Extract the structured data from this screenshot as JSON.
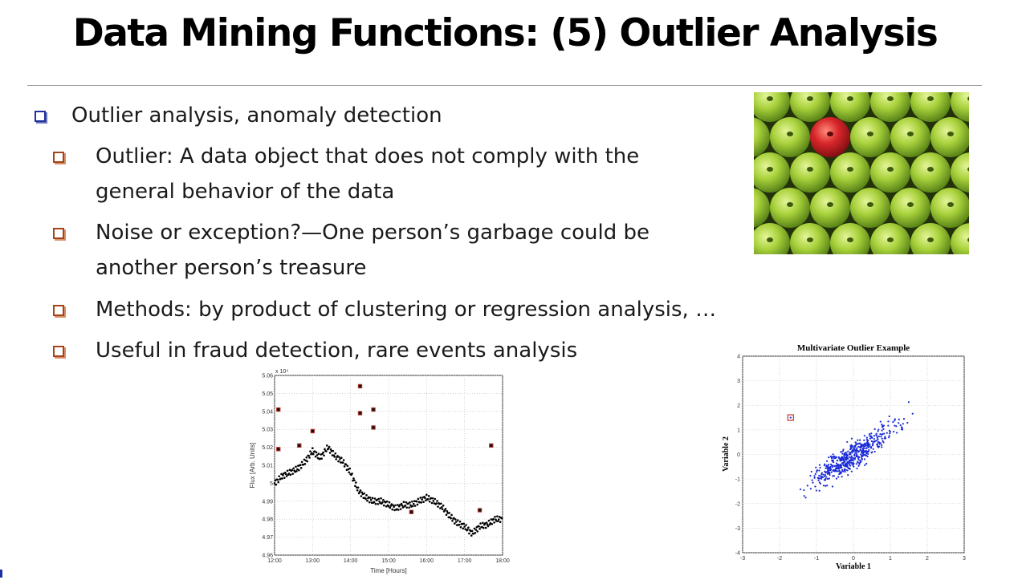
{
  "slide": {
    "title": "Data Mining Functions: (5) Outlier Analysis",
    "bullets": [
      {
        "level": 1,
        "lines": [
          "Outlier analysis, anomaly detection"
        ]
      },
      {
        "level": 2,
        "lines": [
          "Outlier: A data object that does not comply with the",
          "general behavior of the data"
        ]
      },
      {
        "level": 2,
        "lines": [
          "Noise or exception?—One person’s garbage could be",
          "another person’s treasure"
        ]
      },
      {
        "level": 2,
        "lines": [
          "Methods: by product of clustering or regression analysis, …"
        ]
      },
      {
        "level": 2,
        "lines": [
          "Useful in fraud detection, rare events analysis"
        ]
      }
    ]
  },
  "colors": {
    "level1_marker": "#1f2ea0",
    "level2_marker": "#a4441a",
    "outlier": "#c0392b",
    "scatter_points": "#1a2bd6"
  },
  "image": {
    "icon": "apples-photo-icon",
    "description": "grid of green apples with one red apple"
  },
  "chart_data": [
    {
      "type": "scatter",
      "title": "",
      "xlabel": "Time [Hours]",
      "ylabel": "Flux [Arb. Units]",
      "y_multiplier_label": "x 10⁴",
      "xticks": [
        "12:00",
        "13:00",
        "14:00",
        "15:00",
        "16:00",
        "17:00",
        "18:00"
      ],
      "yticks": [
        "4.96",
        "4.97",
        "4.98",
        "4.99",
        "5",
        "5.01",
        "5.02",
        "5.03",
        "5.04",
        "5.05",
        "5.06"
      ],
      "xlim": [
        12,
        18
      ],
      "ylim": [
        4.96,
        5.06
      ],
      "grid": true,
      "series": [
        {
          "role": "data",
          "x": [
            12.0,
            12.2,
            12.4,
            12.6,
            12.8,
            13.0,
            13.2,
            13.4,
            13.6,
            13.8,
            14.0,
            14.2,
            14.4,
            14.6,
            14.8,
            15.0,
            15.2,
            15.4,
            15.6,
            15.8,
            16.0,
            16.2,
            16.4,
            16.6,
            16.8,
            17.0,
            17.2,
            17.4,
            17.6,
            17.8,
            18.0
          ],
          "y": [
            5.0,
            5.004,
            5.006,
            5.008,
            5.012,
            5.018,
            5.014,
            5.02,
            5.015,
            5.012,
            5.006,
            4.996,
            4.992,
            4.99,
            4.99,
            4.988,
            4.986,
            4.988,
            4.988,
            4.99,
            4.992,
            4.99,
            4.987,
            4.982,
            4.978,
            4.976,
            4.972,
            4.976,
            4.977,
            4.98,
            4.98
          ]
        },
        {
          "role": "outliers",
          "x": [
            12.1,
            12.1,
            12.65,
            13.0,
            14.25,
            14.25,
            14.6,
            14.6,
            15.6,
            17.4,
            17.7
          ],
          "y": [
            5.041,
            5.019,
            5.021,
            5.029,
            5.054,
            5.039,
            5.041,
            5.031,
            4.984,
            4.985,
            5.021
          ]
        }
      ]
    },
    {
      "type": "scatter",
      "title": "Multivariate Outlier Example",
      "xlabel": "Variable 1",
      "ylabel": "Variable 2",
      "xticks": [
        "-3",
        "-2",
        "-1",
        "0",
        "1",
        "2",
        "3"
      ],
      "yticks": [
        "-4",
        "-3",
        "-2",
        "-1",
        "0",
        "1",
        "2",
        "3",
        "4"
      ],
      "xlim": [
        -3,
        3
      ],
      "ylim": [
        -4,
        4
      ],
      "grid": true,
      "trend": {
        "x_range": [
          -2.5,
          2.5
        ],
        "slope": 0.95,
        "spread": 0.45,
        "count": 500
      },
      "outliers": [
        {
          "x": -1.7,
          "y": 1.5
        }
      ]
    }
  ]
}
